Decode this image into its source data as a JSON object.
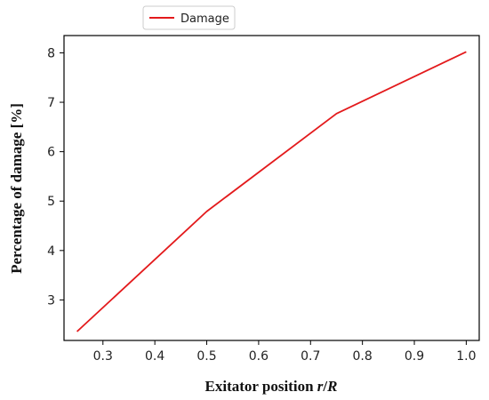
{
  "chart_data": {
    "type": "line",
    "title": "",
    "xlabel": {
      "prefix": "Exitator position ",
      "var1": "r",
      "sep": "/",
      "var2": "R"
    },
    "ylabel": "Percentage of damage [%]",
    "xlim": [
      0.225,
      1.025
    ],
    "ylim": [
      2.18,
      8.35
    ],
    "xticks": [
      0.3,
      0.4,
      0.5,
      0.6,
      0.7,
      0.8,
      0.9,
      1.0
    ],
    "xtick_labels": [
      "0.3",
      "0.4",
      "0.5",
      "0.6",
      "0.7",
      "0.8",
      "0.9",
      "1.0"
    ],
    "yticks": [
      3,
      4,
      5,
      6,
      7,
      8
    ],
    "ytick_labels": [
      "3",
      "4",
      "5",
      "6",
      "7",
      "8"
    ],
    "grid": false,
    "legend_position": "top-center-outside",
    "series": [
      {
        "name": "Damage",
        "color": "#e31a1c",
        "x": [
          0.25,
          0.5,
          0.75,
          1.0
        ],
        "y": [
          2.36,
          4.79,
          6.77,
          8.02
        ]
      }
    ]
  }
}
